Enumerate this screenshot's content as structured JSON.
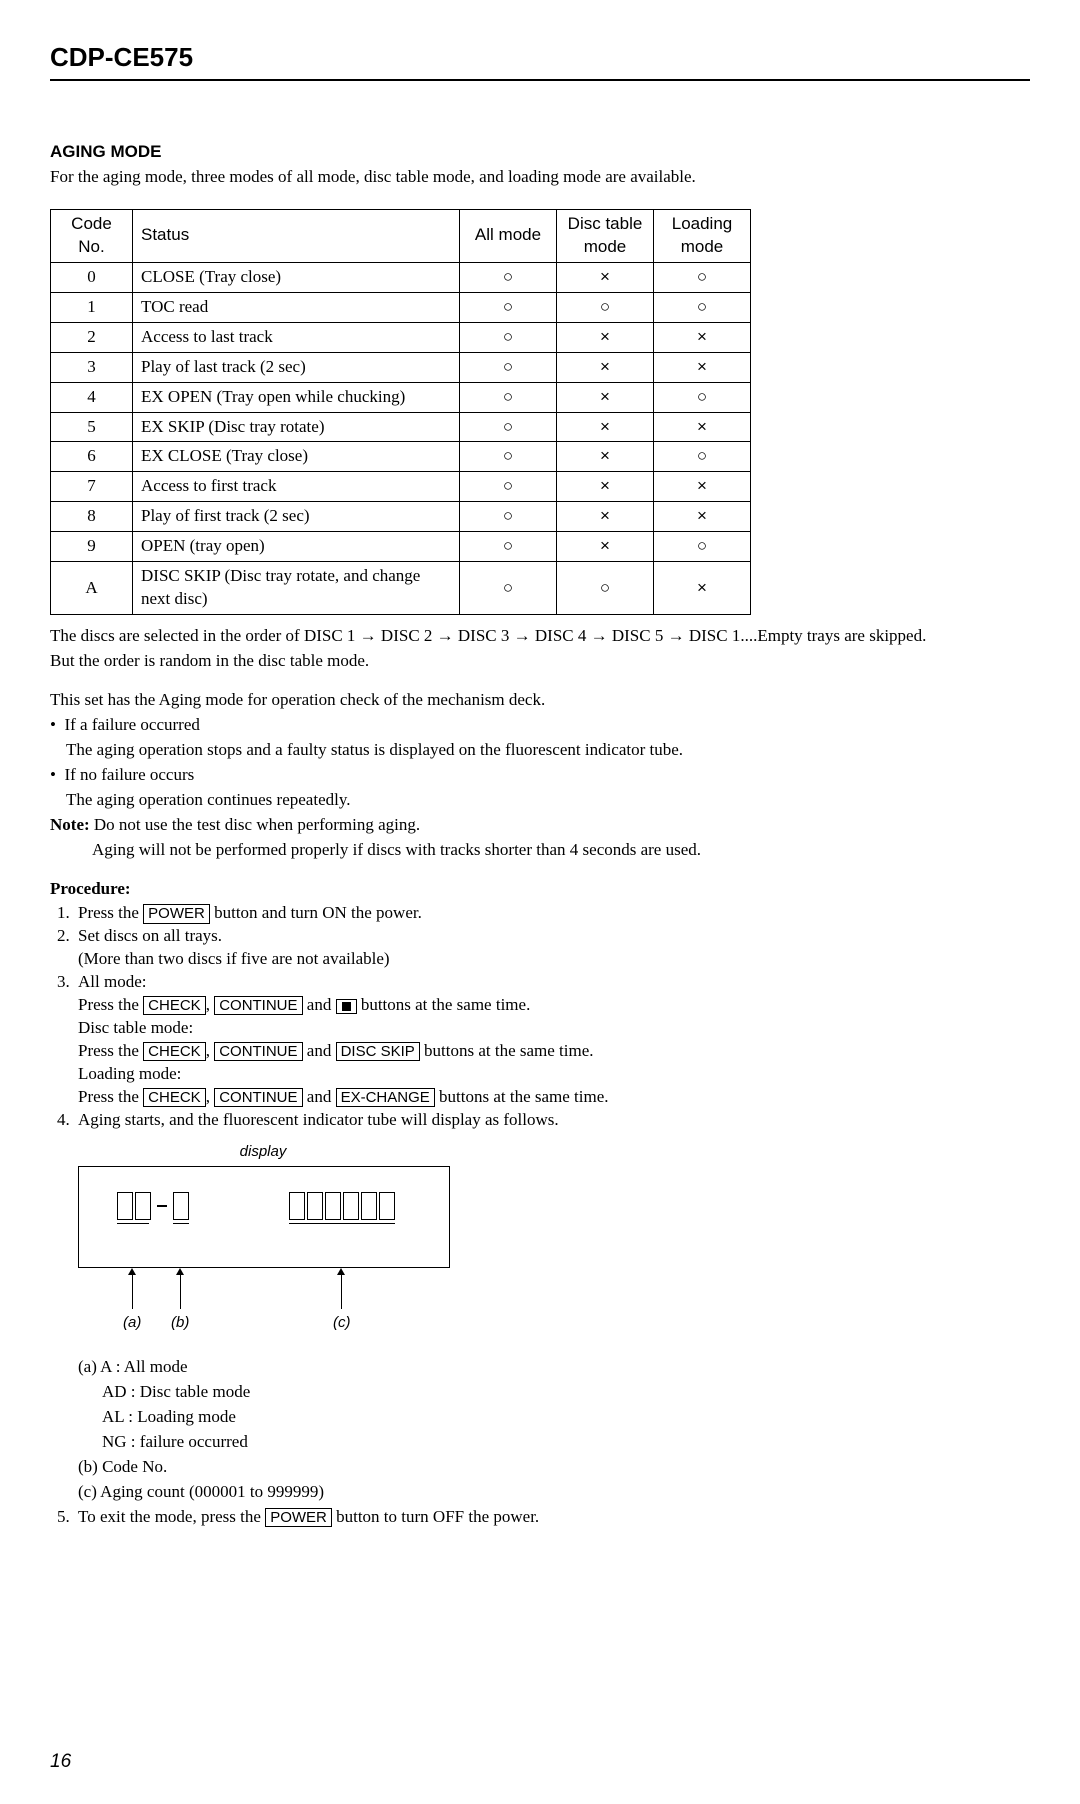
{
  "model": "CDP-CE575",
  "section_title": "AGING  MODE",
  "intro": "For the aging mode, three modes of all mode, disc table mode, and loading mode are available.",
  "table": {
    "headers": [
      "Code No.",
      "Status",
      "All mode",
      "Disc table mode",
      "Loading mode"
    ],
    "rows": [
      {
        "code": "0",
        "status": "CLOSE (Tray close)",
        "all": "○",
        "disc": "×",
        "load": "○"
      },
      {
        "code": "1",
        "status": "TOC read",
        "all": "○",
        "disc": "○",
        "load": "○"
      },
      {
        "code": "2",
        "status": "Access to last track",
        "all": "○",
        "disc": "×",
        "load": "×"
      },
      {
        "code": "3",
        "status": "Play of last track (2 sec)",
        "all": "○",
        "disc": "×",
        "load": "×"
      },
      {
        "code": "4",
        "status": "EX OPEN (Tray open while chucking)",
        "all": "○",
        "disc": "×",
        "load": "○"
      },
      {
        "code": "5",
        "status": "EX SKIP (Disc tray rotate)",
        "all": "○",
        "disc": "×",
        "load": "×"
      },
      {
        "code": "6",
        "status": "EX CLOSE (Tray close)",
        "all": "○",
        "disc": "×",
        "load": "○"
      },
      {
        "code": "7",
        "status": "Access to first track",
        "all": "○",
        "disc": "×",
        "load": "×"
      },
      {
        "code": "8",
        "status": "Play of first track (2 sec)",
        "all": "○",
        "disc": "×",
        "load": "×"
      },
      {
        "code": "9",
        "status": "OPEN (tray open)",
        "all": "○",
        "disc": "×",
        "load": "○"
      },
      {
        "code": "A",
        "status": "DISC SKIP (Disc tray rotate, and change next disc)",
        "all": "○",
        "disc": "○",
        "load": "×"
      }
    ]
  },
  "after_table_1": "The discs are selected in the order of DISC 1 → DISC 2 → DISC 3 → DISC 4 → DISC 5 → DISC 1....Empty trays are skipped.",
  "after_table_2": "But the order is random in the disc table mode.",
  "para2": "This set has the Aging mode for operation check of the mechanism deck.",
  "bullet1_head": "If a failure occurred",
  "bullet1_body": "The aging operation stops and a faulty status is displayed on the fluorescent indicator tube.",
  "bullet2_head": "If no failure occurs",
  "bullet2_body": "The aging operation continues repeatedly.",
  "note_label": "Note:",
  "note_1": "Do not use the test disc when performing aging.",
  "note_2": "Aging will not be performed properly if discs with tracks shorter than 4 seconds are used.",
  "procedure_label": "Procedure:",
  "proc": {
    "s1a": "Press the ",
    "s1b": " button and turn ON the power.",
    "s2a": "Set discs on all trays.",
    "s2b": "(More than two discs if five are not available)",
    "s3a": "All mode:",
    "s3b_1": "Press the ",
    "s3b_2": ", ",
    "s3b_3": " and ",
    "s3b_4": " buttons at the same time.",
    "s3c": "Disc table mode:",
    "s3d_1": "Press the ",
    "s3d_2": ", ",
    "s3d_3": " and ",
    "s3d_4": " buttons at the same time.",
    "s3e": "Loading mode:",
    "s3f_1": "Press the ",
    "s3f_2": ", ",
    "s3f_3": " and ",
    "s3f_4": " buttons at the same time.",
    "s4": "Aging starts, and the fluorescent indicator tube will display as follows.",
    "s5a": "To exit the mode, press the ",
    "s5b": " button to turn OFF the power."
  },
  "buttons": {
    "power": "POWER",
    "check": "CHECK",
    "continue": "CONTINUE",
    "discskip": "DISC SKIP",
    "exchange": "EX-CHANGE"
  },
  "display_label": "display",
  "legend": {
    "a1": "(a) A   : All mode",
    "a2": "AD : Disc table mode",
    "a3": "AL : Loading mode",
    "a4": "NG : failure occurred",
    "b": "(b) Code No.",
    "c": "(c) Aging count (000001 to 999999)"
  },
  "arrow_labels": {
    "a": "(a)",
    "b": "(b)",
    "c": "(c)"
  },
  "page_number": "16"
}
